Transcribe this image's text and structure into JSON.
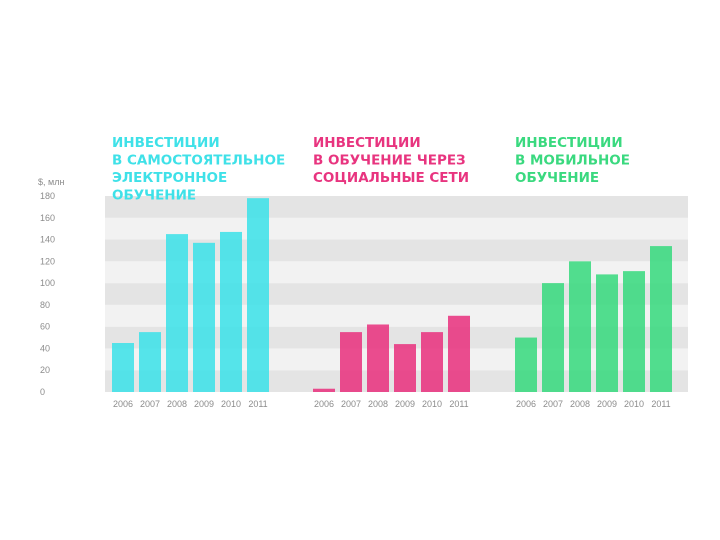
{
  "colors": {
    "cyan": "#3fe1e8",
    "pink": "#e8347f",
    "green": "#3ad97f",
    "stripe_light": "#f2f2f2",
    "stripe_dark": "#e4e4e4",
    "axis_text": "#8c8c8c"
  },
  "y_axis": {
    "unit": "$, млн",
    "ticks": [
      "0",
      "20",
      "40",
      "60",
      "80",
      "100",
      "120",
      "140",
      "160",
      "180"
    ]
  },
  "chart_data": [
    {
      "type": "bar",
      "title": [
        "ИНВЕСТИЦИИ",
        "В САМОСТОЯТЕЛЬНОЕ",
        "ЭЛЕКТРОННОЕ",
        "ОБУЧЕНИЕ"
      ],
      "color": "#3fe1e8",
      "categories": [
        "2006",
        "2007",
        "2008",
        "2009",
        "2010",
        "2011"
      ],
      "values": [
        45,
        55,
        145,
        137,
        147,
        178
      ],
      "ylabel": "$, млн",
      "ylim": [
        0,
        180
      ],
      "grid": true
    },
    {
      "type": "bar",
      "title": [
        "ИНВЕСТИЦИИ",
        "В ОБУЧЕНИЕ ЧЕРЕЗ",
        "СОЦИАЛЬНЫЕ СЕТИ"
      ],
      "color": "#e8347f",
      "categories": [
        "2006",
        "2007",
        "2008",
        "2009",
        "2010",
        "2011"
      ],
      "values": [
        3,
        55,
        62,
        44,
        55,
        70
      ],
      "ylabel": "$, млн",
      "ylim": [
        0,
        180
      ],
      "grid": true
    },
    {
      "type": "bar",
      "title": [
        "ИНВЕСТИЦИИ",
        "В МОБИЛЬНОЕ",
        "ОБУЧЕНИЕ"
      ],
      "color": "#3ad97f",
      "categories": [
        "2006",
        "2007",
        "2008",
        "2009",
        "2010",
        "2011"
      ],
      "values": [
        50,
        100,
        120,
        108,
        111,
        134
      ],
      "ylabel": "$, млн",
      "ylim": [
        0,
        180
      ],
      "grid": true
    }
  ]
}
